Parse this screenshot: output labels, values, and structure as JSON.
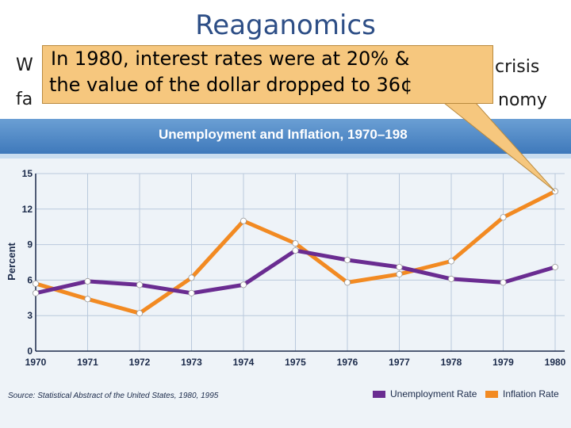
{
  "slide": {
    "title": "Reaganomics",
    "bg_line1_left": "W",
    "bg_line1_right": "crisis",
    "bg_line2_left": "fa",
    "bg_line2_right": "nomy",
    "callout_line1": "In 1980, interest rates were at 20% &",
    "callout_line2": "the value of the dollar dropped to 36¢"
  },
  "chart_data": {
    "type": "line",
    "title": "Unemployment and Inflation, 1970–198",
    "ylabel": "Percent",
    "xlabel": "",
    "categories": [
      "1970",
      "1971",
      "1972",
      "1973",
      "1974",
      "1975",
      "1976",
      "1977",
      "1978",
      "1979",
      "1980"
    ],
    "ylim": [
      0,
      15
    ],
    "yticks": [
      0,
      3,
      6,
      9,
      12,
      15
    ],
    "series": [
      {
        "name": "Unemployment Rate",
        "color": "#6a2c91",
        "values": [
          4.9,
          5.9,
          5.6,
          4.9,
          5.6,
          8.5,
          7.7,
          7.1,
          6.1,
          5.8,
          7.1
        ]
      },
      {
        "name": "Inflation Rate",
        "color": "#f28a22",
        "values": [
          5.7,
          4.4,
          3.2,
          6.2,
          11.0,
          9.1,
          5.8,
          6.5,
          7.6,
          11.3,
          13.5
        ]
      }
    ],
    "grid": true,
    "legend": "bottom-right",
    "source": "Source: Statistical Abstract of the United States, 1980, 1995"
  }
}
